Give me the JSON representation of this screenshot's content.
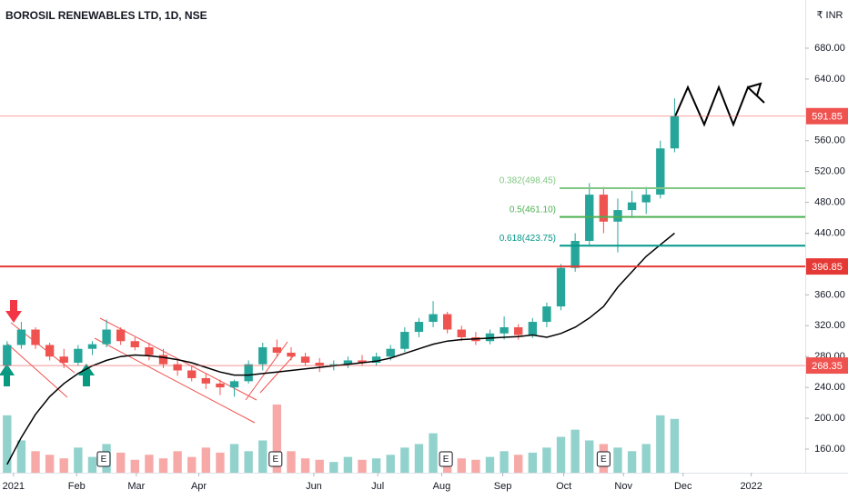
{
  "header": {
    "title": "BOROSIL RENEWABLES LTD, 1D, NSE",
    "currency": "₹ INR"
  },
  "chart_data": {
    "type": "candlestick",
    "xlim": [
      -0.5,
      56.2
    ],
    "xticks": [
      {
        "value": 0.45,
        "label": "2021"
      },
      {
        "value": 4.9,
        "label": "Feb"
      },
      {
        "value": 9.1,
        "label": "Mar"
      },
      {
        "value": 13.5,
        "label": "Apr"
      },
      {
        "value": 21.6,
        "label": "Jun"
      },
      {
        "value": 26.1,
        "label": "Jul"
      },
      {
        "value": 30.6,
        "label": "Aug"
      },
      {
        "value": 34.9,
        "label": "Sep"
      },
      {
        "value": 39.2,
        "label": "Oct"
      },
      {
        "value": 43.4,
        "label": "Nov"
      },
      {
        "value": 47.6,
        "label": "Dec"
      },
      {
        "value": 52.4,
        "label": "2022"
      }
    ],
    "ylim": [
      129.3,
      742.5
    ],
    "yticks": [
      {
        "value": 160,
        "label": "160.00"
      },
      {
        "value": 200,
        "label": "200.00"
      },
      {
        "value": 240,
        "label": "240.00"
      },
      {
        "value": 280,
        "label": "280.00"
      },
      {
        "value": 320,
        "label": "320.00"
      },
      {
        "value": 360,
        "label": "360.00"
      },
      {
        "value": 440,
        "label": "440.00"
      },
      {
        "value": 480,
        "label": "480.00"
      },
      {
        "value": 520,
        "label": "520.00"
      },
      {
        "value": 560,
        "label": "560.00"
      },
      {
        "value": 640,
        "label": "640.00"
      },
      {
        "value": 680,
        "label": "680.00"
      }
    ],
    "grid": false,
    "up_color": "#26a69a",
    "down_color": "#ef5350",
    "ma_color": "#000000",
    "open": [
      268,
      295,
      315,
      295,
      280,
      272,
      290,
      296,
      315,
      300,
      292,
      282,
      270,
      262,
      252,
      245,
      240,
      248,
      270,
      292,
      285,
      280,
      272,
      268,
      270,
      275,
      272,
      280,
      290,
      312,
      325,
      335,
      315,
      305,
      300,
      310,
      318,
      308,
      325,
      345,
      395,
      430,
      490,
      455,
      470,
      480,
      490,
      550
    ],
    "high": [
      300,
      325,
      318,
      298,
      290,
      295,
      300,
      328,
      318,
      305,
      298,
      290,
      275,
      268,
      258,
      250,
      250,
      275,
      298,
      302,
      292,
      285,
      278,
      275,
      280,
      282,
      285,
      295,
      318,
      330,
      352,
      338,
      320,
      312,
      315,
      332,
      322,
      330,
      350,
      400,
      440,
      505,
      500,
      485,
      495,
      500,
      560,
      615
    ],
    "low": [
      262,
      290,
      290,
      275,
      265,
      268,
      282,
      292,
      295,
      288,
      275,
      265,
      255,
      248,
      238,
      230,
      228,
      245,
      262,
      280,
      275,
      268,
      260,
      262,
      265,
      268,
      268,
      275,
      286,
      305,
      318,
      310,
      300,
      295,
      296,
      302,
      302,
      304,
      318,
      340,
      390,
      425,
      440,
      415,
      460,
      465,
      485,
      545
    ],
    "close": [
      295,
      315,
      295,
      280,
      272,
      290,
      296,
      315,
      300,
      292,
      282,
      270,
      262,
      252,
      245,
      240,
      248,
      270,
      292,
      285,
      280,
      272,
      268,
      270,
      275,
      272,
      280,
      290,
      312,
      325,
      335,
      315,
      305,
      300,
      310,
      318,
      308,
      325,
      345,
      395,
      430,
      490,
      455,
      470,
      480,
      490,
      550,
      591.85
    ],
    "volume": [
      80,
      45,
      30,
      25,
      20,
      35,
      22,
      40,
      28,
      18,
      25,
      20,
      30,
      22,
      35,
      28,
      40,
      30,
      45,
      95,
      30,
      20,
      18,
      15,
      22,
      18,
      20,
      25,
      35,
      40,
      55,
      30,
      20,
      18,
      22,
      30,
      25,
      28,
      35,
      50,
      60,
      45,
      40,
      35,
      30,
      40,
      80,
      75
    ],
    "ma": [
      140,
      175,
      205,
      228,
      245,
      258,
      268,
      275,
      280,
      282,
      281,
      279,
      276,
      272,
      266,
      260,
      256,
      256,
      258,
      260,
      262,
      264,
      266,
      268,
      270,
      272,
      274,
      278,
      284,
      290,
      296,
      300,
      302,
      303,
      304,
      305,
      306,
      308,
      305,
      310,
      318,
      330,
      345,
      370,
      390,
      410,
      425,
      440
    ],
    "levels": [
      {
        "value": 396.85,
        "color": "#e53935",
        "width": 2
      },
      {
        "value": 268.35,
        "color": "#ef5350",
        "width": 1
      }
    ],
    "last_price": {
      "value": 591.85,
      "color": "#ef5350"
    },
    "fib": [
      {
        "value": 498.45,
        "label": "0.382(498.45)",
        "color": "#81c784"
      },
      {
        "value": 461.1,
        "label": "0.5(461.10)",
        "color": "#4caf50"
      },
      {
        "value": 423.75,
        "label": "0.618(423.75)",
        "color": "#009688"
      }
    ],
    "earnings": [
      {
        "x": 6.8,
        "label": "E"
      },
      {
        "x": 18.9,
        "label": "E"
      },
      {
        "x": 30.9,
        "label": "E"
      },
      {
        "x": 42.0,
        "label": "E"
      }
    ]
  }
}
